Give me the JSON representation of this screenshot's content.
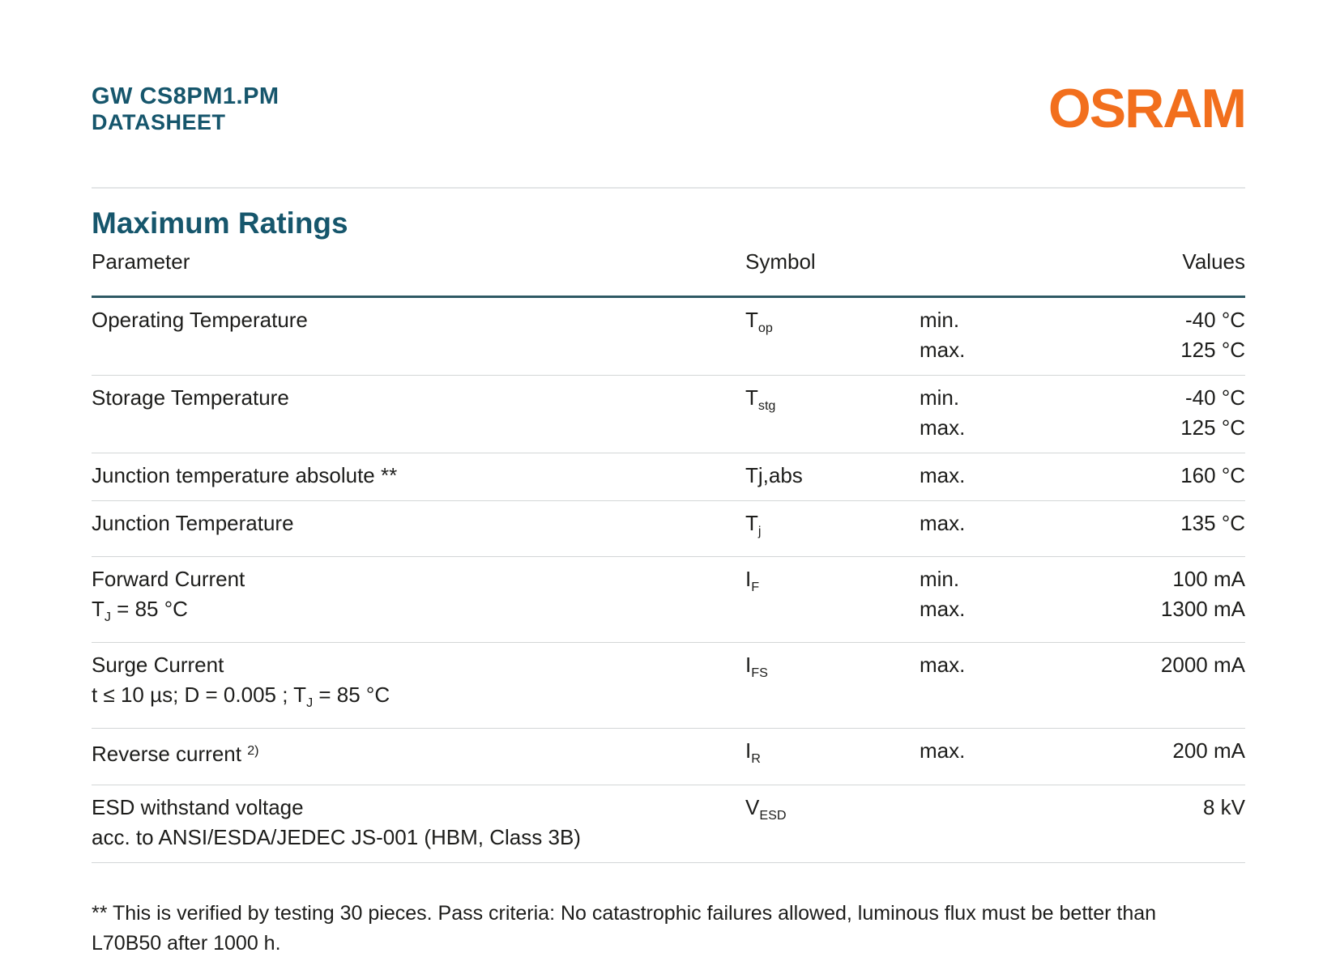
{
  "header": {
    "product": "GW CS8PM1.PM",
    "doc_type": "DATASHEET",
    "brand": "OSRAM"
  },
  "colors": {
    "teal": "#16566c",
    "orange": "#f26f1d",
    "rule_teal": "#2e5964",
    "row_line": "#d3d6d7"
  },
  "section": {
    "title": "Maximum Ratings"
  },
  "table": {
    "headers": {
      "parameter": "Parameter",
      "symbol": "Symbol",
      "values": "Values"
    },
    "rows": [
      {
        "param_lines": [
          [
            {
              "t": "Operating Temperature"
            }
          ]
        ],
        "symbol": [
          {
            "t": "T"
          },
          {
            "sub": "op"
          }
        ],
        "entries": [
          {
            "q": "min.",
            "v": "-40 °C"
          },
          {
            "q": "max.",
            "v": "125 °C"
          }
        ]
      },
      {
        "param_lines": [
          [
            {
              "t": "Storage Temperature"
            }
          ]
        ],
        "symbol": [
          {
            "t": "T"
          },
          {
            "sub": "stg"
          }
        ],
        "entries": [
          {
            "q": "min.",
            "v": "-40 °C"
          },
          {
            "q": "max.",
            "v": "125 °C"
          }
        ]
      },
      {
        "param_lines": [
          [
            {
              "t": "Junction temperature absolute **"
            }
          ]
        ],
        "symbol": [
          {
            "t": "Tj,abs"
          }
        ],
        "entries": [
          {
            "q": "max.",
            "v": "160 °C"
          }
        ]
      },
      {
        "param_lines": [
          [
            {
              "t": "Junction Temperature"
            }
          ]
        ],
        "symbol": [
          {
            "t": "T"
          },
          {
            "sub": "j"
          }
        ],
        "entries": [
          {
            "q": "max.",
            "v": "135 °C"
          }
        ]
      },
      {
        "param_lines": [
          [
            {
              "t": "Forward Current"
            }
          ],
          [
            {
              "t": "T"
            },
            {
              "sub": "J"
            },
            {
              "t": " = 85 °C"
            }
          ]
        ],
        "symbol": [
          {
            "t": "I"
          },
          {
            "sub": "F"
          }
        ],
        "entries": [
          {
            "q": "min.",
            "v": "100 mA"
          },
          {
            "q": "max.",
            "v": "1300 mA"
          }
        ]
      },
      {
        "param_lines": [
          [
            {
              "t": "Surge Current"
            }
          ],
          [
            {
              "t": "t ≤ 10 µs; D = 0.005 ; T"
            },
            {
              "sub": "J"
            },
            {
              "t": " = 85 °C"
            }
          ]
        ],
        "symbol": [
          {
            "t": "I"
          },
          {
            "sub": "FS"
          }
        ],
        "entries": [
          {
            "q": "max.",
            "v": "2000 mA"
          }
        ]
      },
      {
        "param_lines": [
          [
            {
              "t": "Reverse current "
            },
            {
              "sup": "2)"
            }
          ]
        ],
        "symbol": [
          {
            "t": "I"
          },
          {
            "sub": "R"
          }
        ],
        "entries": [
          {
            "q": "max.",
            "v": "200 mA"
          }
        ]
      },
      {
        "param_lines": [
          [
            {
              "t": "ESD withstand voltage"
            }
          ],
          [
            {
              "t": "acc. to ANSI/ESDA/JEDEC JS-001 (HBM, Class 3B)"
            }
          ]
        ],
        "symbol": [
          {
            "t": "V"
          },
          {
            "sub": "ESD"
          }
        ],
        "entries": [
          {
            "q": "",
            "v": "8 kV"
          }
        ]
      }
    ]
  },
  "footnote": {
    "lines": [
      "** This is verified by testing 30 pieces. Pass criteria: No catastrophic failures allowed, luminous flux must be better than",
      "L70B50 after 1000 h."
    ]
  }
}
